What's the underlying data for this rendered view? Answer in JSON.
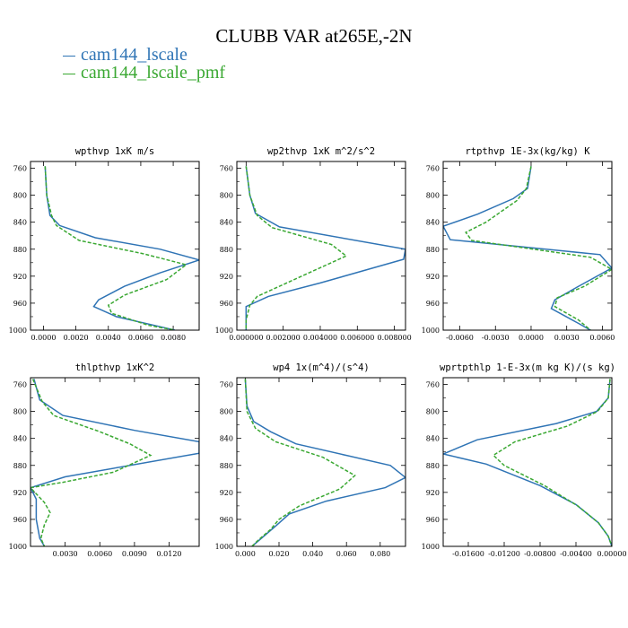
{
  "title": "CLUBB VAR at265E,-2N",
  "legend": [
    {
      "name": "cam144_lscale",
      "color": "#2f74b5"
    },
    {
      "name": "cam144_lscale_pmf",
      "color": "#3aa832"
    }
  ],
  "chart_data": {
    "type": "line",
    "y_axis": {
      "ylim": [
        750,
        1000
      ],
      "inverted": true
    },
    "panels": [
      {
        "title": "wpthvp   1xK m/s",
        "xlim": [
          -0.0008,
          0.0096
        ],
        "x_ticks": [
          "0.0000",
          "0.0020",
          "0.0040",
          "0.0060",
          "0.0080"
        ],
        "x_tick_values": [
          0.0,
          0.002,
          0.004,
          0.006,
          0.008
        ],
        "y_ticks": [
          760,
          800,
          840,
          880,
          920,
          960,
          1000
        ],
        "series": [
          {
            "name": "cam144_lscale",
            "points": [
              [
                0.0001,
                757
              ],
              [
                0.0002,
                800
              ],
              [
                0.0004,
                830
              ],
              [
                0.001,
                845
              ],
              [
                0.0032,
                863
              ],
              [
                0.0072,
                880
              ],
              [
                0.0096,
                896
              ],
              [
                0.0072,
                915
              ],
              [
                0.005,
                935
              ],
              [
                0.0034,
                955
              ],
              [
                0.0031,
                965
              ],
              [
                0.0045,
                980
              ],
              [
                0.0072,
                995
              ],
              [
                0.0081,
                1000
              ]
            ]
          },
          {
            "name": "cam144_lscale_pmf",
            "points": [
              [
                0.0001,
                757
              ],
              [
                0.0002,
                800
              ],
              [
                0.0005,
                830
              ],
              [
                0.0008,
                845
              ],
              [
                0.0022,
                867
              ],
              [
                0.0062,
                887
              ],
              [
                0.0088,
                903
              ],
              [
                0.0076,
                925
              ],
              [
                0.005,
                948
              ],
              [
                0.004,
                963
              ],
              [
                0.0042,
                975
              ],
              [
                0.0065,
                993
              ],
              [
                0.0081,
                1000
              ]
            ]
          }
        ]
      },
      {
        "title": "wp2thvp   1xK m^2/s^2",
        "xlim": [
          -0.0005,
          0.0086
        ],
        "x_ticks": [
          "0.000000",
          "0.002000",
          "0.004000",
          "0.006000",
          "0.008000"
        ],
        "x_tick_values": [
          0.0,
          0.002,
          0.004,
          0.006,
          0.008
        ],
        "y_ticks": [
          760,
          800,
          840,
          880,
          920,
          960,
          1000
        ],
        "series": [
          {
            "name": "cam144_lscale",
            "points": [
              [
                0.0,
                757
              ],
              [
                0.0002,
                800
              ],
              [
                0.0005,
                827
              ],
              [
                0.0018,
                847
              ],
              [
                0.0086,
                880
              ],
              [
                0.0085,
                895
              ],
              [
                0.004,
                930
              ],
              [
                0.0012,
                950
              ],
              [
                0.0,
                965
              ],
              [
                0.0,
                985
              ],
              [
                0.0,
                1000
              ]
            ]
          },
          {
            "name": "cam144_lscale_pmf",
            "points": [
              [
                0.0,
                757
              ],
              [
                0.0002,
                800
              ],
              [
                0.0006,
                830
              ],
              [
                0.0014,
                848
              ],
              [
                0.0046,
                873
              ],
              [
                0.0054,
                890
              ],
              [
                0.003,
                920
              ],
              [
                0.0006,
                950
              ],
              [
                0.0002,
                963
              ],
              [
                0.0,
                985
              ],
              [
                0.0,
                1000
              ]
            ]
          }
        ]
      },
      {
        "title": "rtpthvp   1E-3x(kg/kg) K",
        "xlim": [
          -0.0074,
          0.0068
        ],
        "x_ticks": [
          "-0.0060",
          "-0.0030",
          "0.0000",
          "0.0030",
          "0.0060"
        ],
        "x_tick_values": [
          -0.006,
          -0.003,
          0.0,
          0.003,
          0.006
        ],
        "y_ticks": [
          760,
          800,
          840,
          880,
          920,
          960,
          1000
        ],
        "series": [
          {
            "name": "cam144_lscale",
            "points": [
              [
                0.0,
                757
              ],
              [
                -0.0003,
                790
              ],
              [
                -0.0015,
                805
              ],
              [
                -0.0045,
                828
              ],
              [
                -0.0074,
                846
              ],
              [
                -0.0068,
                866
              ],
              [
                0.0058,
                888
              ],
              [
                0.0068,
                908
              ],
              [
                0.004,
                935
              ],
              [
                0.002,
                955
              ],
              [
                0.0017,
                968
              ],
              [
                0.004,
                990
              ],
              [
                0.005,
                1000
              ]
            ]
          },
          {
            "name": "cam144_lscale_pmf",
            "points": [
              [
                0.0,
                757
              ],
              [
                -0.0004,
                790
              ],
              [
                -0.0012,
                808
              ],
              [
                -0.0038,
                840
              ],
              [
                -0.0055,
                855
              ],
              [
                -0.005,
                867
              ],
              [
                0.005,
                892
              ],
              [
                0.0068,
                910
              ],
              [
                0.0045,
                935
              ],
              [
                0.0022,
                952
              ],
              [
                0.002,
                965
              ],
              [
                0.004,
                985
              ],
              [
                0.005,
                1000
              ]
            ]
          }
        ]
      },
      {
        "title": "thlpthvp   1xK^2",
        "xlim": [
          0.0,
          0.0146
        ],
        "x_ticks": [
          "0.0030",
          "0.0060",
          "0.0090",
          "0.0120"
        ],
        "x_tick_values": [
          0.003,
          0.006,
          0.009,
          0.012
        ],
        "y_ticks": [
          760,
          800,
          840,
          880,
          920,
          960,
          1000
        ],
        "series": [
          {
            "name": "cam144_lscale",
            "points": [
              [
                0.0003,
                752
              ],
              [
                0.0008,
                783
              ],
              [
                0.0028,
                806
              ],
              [
                0.009,
                828
              ],
              [
                0.0146,
                845
              ],
              [
                0.0146,
                862
              ],
              [
                0.003,
                897
              ],
              [
                0.0,
                913
              ],
              [
                0.0005,
                930
              ],
              [
                0.0005,
                960
              ],
              [
                0.0008,
                988
              ],
              [
                0.0012,
                1000
              ]
            ]
          },
          {
            "name": "cam144_lscale_pmf",
            "points": [
              [
                0.0002,
                752
              ],
              [
                0.001,
                785
              ],
              [
                0.002,
                806
              ],
              [
                0.006,
                830
              ],
              [
                0.0086,
                848
              ],
              [
                0.0104,
                865
              ],
              [
                0.0072,
                890
              ],
              [
                0.0028,
                905
              ],
              [
                0.0,
                913
              ],
              [
                0.0012,
                935
              ],
              [
                0.0017,
                950
              ],
              [
                0.0012,
                968
              ],
              [
                0.0009,
                988
              ],
              [
                0.0012,
                1000
              ]
            ]
          }
        ]
      },
      {
        "title": "wp4   1x(m^4)/(s^4)",
        "xlim": [
          -0.005,
          0.095
        ],
        "x_ticks": [
          "0.000",
          "0.020",
          "0.040",
          "0.060",
          "0.080"
        ],
        "x_tick_values": [
          0.0,
          0.02,
          0.04,
          0.06,
          0.08
        ],
        "y_ticks": [
          760,
          800,
          840,
          880,
          920,
          960,
          1000
        ],
        "series": [
          {
            "name": "cam144_lscale",
            "points": [
              [
                0.0,
                752
              ],
              [
                0.001,
                792
              ],
              [
                0.005,
                815
              ],
              [
                0.015,
                830
              ],
              [
                0.03,
                848
              ],
              [
                0.086,
                880
              ],
              [
                0.095,
                898
              ],
              [
                0.083,
                913
              ],
              [
                0.048,
                933
              ],
              [
                0.026,
                952
              ],
              [
                0.018,
                970
              ],
              [
                0.011,
                985
              ],
              [
                0.004,
                1000
              ]
            ]
          },
          {
            "name": "cam144_lscale_pmf",
            "points": [
              [
                0.0,
                752
              ],
              [
                0.001,
                800
              ],
              [
                0.006,
                825
              ],
              [
                0.018,
                845
              ],
              [
                0.046,
                868
              ],
              [
                0.065,
                895
              ],
              [
                0.056,
                915
              ],
              [
                0.032,
                940
              ],
              [
                0.02,
                960
              ],
              [
                0.015,
                975
              ],
              [
                0.008,
                990
              ],
              [
                0.004,
                1000
              ]
            ]
          }
        ]
      },
      {
        "title": "wprtpthlp   1-E-3x(m kg K)/(s kg)",
        "xlim": [
          -0.0188,
          0.0
        ],
        "x_ticks": [
          "-0.01600",
          "-0.01200",
          "-0.00800",
          "-0.00400",
          "0.00000"
        ],
        "x_tick_values": [
          -0.016,
          -0.012,
          -0.008,
          -0.004,
          0.0
        ],
        "y_ticks": [
          760,
          800,
          840,
          880,
          920,
          960,
          1000
        ],
        "series": [
          {
            "name": "cam144_lscale",
            "points": [
              [
                -0.0002,
                752
              ],
              [
                -0.0004,
                780
              ],
              [
                -0.0017,
                800
              ],
              [
                -0.0062,
                818
              ],
              [
                -0.015,
                842
              ],
              [
                -0.0188,
                863
              ],
              [
                -0.014,
                878
              ],
              [
                -0.008,
                910
              ],
              [
                -0.004,
                938
              ],
              [
                -0.0015,
                965
              ],
              [
                -0.0004,
                985
              ],
              [
                0.0,
                1000
              ]
            ]
          },
          {
            "name": "cam144_lscale_pmf",
            "points": [
              [
                -0.0002,
                752
              ],
              [
                -0.0004,
                780
              ],
              [
                -0.0016,
                800
              ],
              [
                -0.005,
                822
              ],
              [
                -0.0108,
                845
              ],
              [
                -0.0132,
                865
              ],
              [
                -0.012,
                880
              ],
              [
                -0.0075,
                910
              ],
              [
                -0.0038,
                940
              ],
              [
                -0.0015,
                965
              ],
              [
                -0.0004,
                985
              ],
              [
                0.0,
                1000
              ]
            ]
          }
        ]
      }
    ]
  }
}
